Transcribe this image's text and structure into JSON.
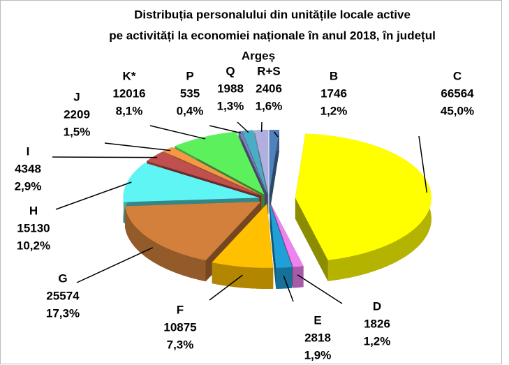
{
  "chart_data": {
    "type": "pie3d",
    "title": [
      "Distribuția personalului  din unitățile locale active",
      "pe activități la economiei naționale în anul 2018, în județul",
      "Argeș"
    ],
    "categories": [
      "B",
      "C",
      "D",
      "E",
      "F",
      "G",
      "H",
      "I",
      "J",
      "K*",
      "P",
      "Q",
      "R+S"
    ],
    "values": [
      1746,
      66564,
      1826,
      2818,
      10875,
      25574,
      15130,
      4348,
      2209,
      12016,
      535,
      1988,
      2406
    ],
    "shares": [
      1.2,
      45.0,
      1.2,
      1.9,
      7.3,
      17.3,
      10.2,
      2.9,
      1.5,
      8.1,
      0.4,
      1.3,
      1.6
    ],
    "share_labels": [
      "1,2%",
      "45,0%",
      "1,2%",
      "1,9%",
      "7,3%",
      "17,3%",
      "10,2%",
      "2,9%",
      "1,5%",
      "8,1%",
      "0,4%",
      "1,3%",
      "1,6%"
    ],
    "colors": [
      "#4f81bd",
      "#ffff00",
      "#ee82ee",
      "#1fa0d8",
      "#ffc000",
      "#d2803c",
      "#5ff5f5",
      "#c0504d",
      "#f79646",
      "#5cf05c",
      "#8080c0",
      "#4bacc6",
      "#b0b0e0"
    ]
  }
}
